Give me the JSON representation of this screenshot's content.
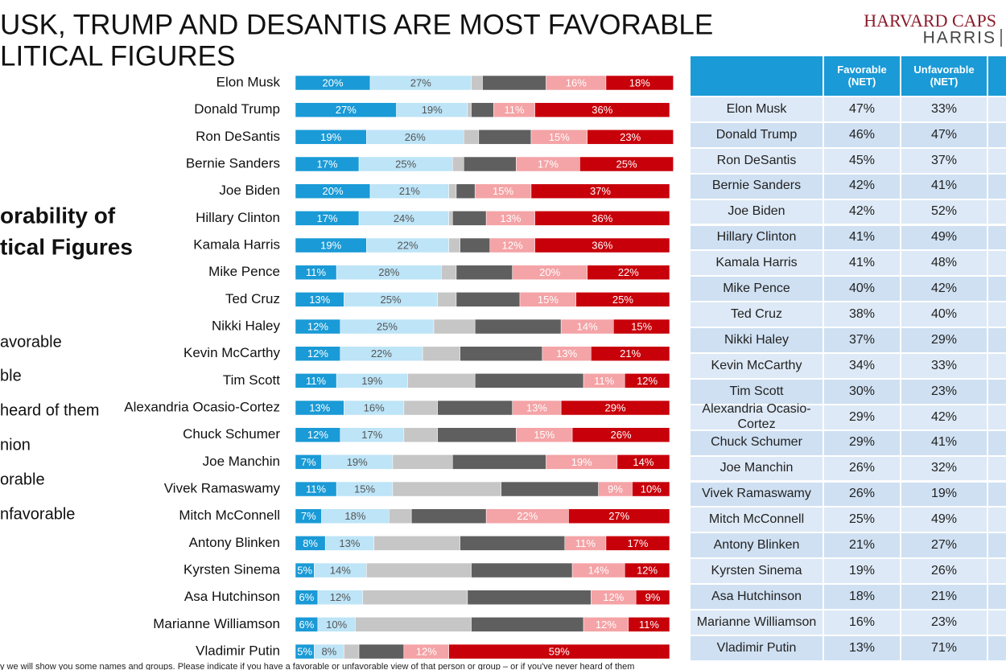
{
  "header": {
    "title": [
      "USK, TRUMP AND DESANTIS ARE MOST FAVORABLE",
      "LITICAL FIGURES"
    ],
    "subtitle": [
      "orability of",
      "tical Figures"
    ],
    "logo": [
      "HARVARD CAPS",
      "HARRIS"
    ],
    "footnote": "y we will show you some names and groups. Please indicate if you have a favorable or unfavorable view of that person or group – or if you've never heard of them"
  },
  "chart_data": {
    "type": "bar",
    "orientation": "horizontal",
    "stacked": true,
    "xlim": [
      0,
      100
    ],
    "categories": [
      "Elon Musk",
      "Donald Trump",
      "Ron DeSantis",
      "Bernie Sanders",
      "Joe Biden",
      "Hillary Clinton",
      "Kamala Harris",
      "Mike Pence",
      "Ted Cruz",
      "Nikki Haley",
      "Kevin McCarthy",
      "Tim Scott",
      "Alexandria Ocasio-Cortez",
      "Chuck Schumer",
      "Joe Manchin",
      "Vivek Ramaswamy",
      "Mitch McConnell",
      "Antony Blinken",
      "Kyrsten Sinema",
      "Asa Hutchinson",
      "Marianne Williamson",
      "Vladimir Putin"
    ],
    "series": [
      {
        "name": "avorable",
        "color": "#1a9ad6",
        "label_color": "#ffffff",
        "values": [
          20,
          27,
          19,
          17,
          20,
          17,
          19,
          11,
          13,
          12,
          12,
          11,
          13,
          12,
          7,
          11,
          7,
          8,
          5,
          6,
          6,
          5
        ],
        "value_labels": [
          "20%",
          "27%",
          "19%",
          "17%",
          "20%",
          "17%",
          "19%",
          "11%",
          "13%",
          "12%",
          "12%",
          "11%",
          "13%",
          "12%",
          "7%",
          "11%",
          "7%",
          "8%",
          "5%",
          "6%",
          "6%",
          "5%"
        ]
      },
      {
        "name": "ble",
        "color": "#bde4f7",
        "label_color": "#555555",
        "values": [
          27,
          19,
          26,
          25,
          21,
          24,
          22,
          28,
          25,
          25,
          22,
          19,
          16,
          17,
          19,
          15,
          18,
          13,
          14,
          12,
          10,
          8
        ],
        "value_labels": [
          "27%",
          "19%",
          "26%",
          "25%",
          "21%",
          "24%",
          "22%",
          "28%",
          "25%",
          "25%",
          "22%",
          "19%",
          "16%",
          "17%",
          "19%",
          "15%",
          "18%",
          "13%",
          "14%",
          "12%",
          "10%",
          "8%"
        ]
      },
      {
        "name": "heard of them",
        "color": "#c6c6c6",
        "values": [
          3,
          1,
          4,
          3,
          2,
          1,
          3,
          4,
          5,
          11,
          10,
          18,
          9,
          9,
          16,
          29,
          6,
          23,
          28,
          28,
          31,
          4
        ]
      },
      {
        "name": "nion",
        "color": "#5f5f5f",
        "values": [
          17,
          6,
          14,
          14,
          5,
          9,
          8,
          15,
          17,
          23,
          22,
          29,
          20,
          21,
          25,
          26,
          20,
          28,
          27,
          33,
          30,
          12
        ]
      },
      {
        "name": "orable",
        "color": "#f4a3a6",
        "label_color": "#ffffff",
        "values": [
          16,
          11,
          15,
          17,
          15,
          13,
          12,
          20,
          15,
          14,
          13,
          11,
          13,
          15,
          19,
          9,
          22,
          11,
          14,
          12,
          12,
          12
        ],
        "value_labels": [
          "16%",
          "11%",
          "15%",
          "17%",
          "15%",
          "13%",
          "12%",
          "20%",
          "15%",
          "14%",
          "13%",
          "11%",
          "13%",
          "15%",
          "19%",
          "9%",
          "22%",
          "11%",
          "14%",
          "12%",
          "12%",
          "12%"
        ]
      },
      {
        "name": "nfavorable",
        "color": "#c8000a",
        "label_color": "#ffffff",
        "values": [
          18,
          36,
          23,
          25,
          37,
          36,
          36,
          22,
          25,
          15,
          21,
          12,
          29,
          26,
          14,
          10,
          27,
          17,
          12,
          9,
          11,
          59
        ],
        "value_labels": [
          "18%",
          "36%",
          "23%",
          "25%",
          "37%",
          "36%",
          "36%",
          "22%",
          "25%",
          "15%",
          "21%",
          "12%",
          "29%",
          "26%",
          "14%",
          "10%",
          "27%",
          "17%",
          "12%",
          "9%",
          "11%",
          "59%"
        ]
      }
    ]
  },
  "table": {
    "columns": [
      "Favorable (NET)",
      "Unfavorable (NET)"
    ],
    "rows": [
      [
        "Elon Musk",
        "47%",
        "33%"
      ],
      [
        "Donald Trump",
        "46%",
        "47%"
      ],
      [
        "Ron DeSantis",
        "45%",
        "37%"
      ],
      [
        "Bernie Sanders",
        "42%",
        "41%"
      ],
      [
        "Joe Biden",
        "42%",
        "52%"
      ],
      [
        "Hillary Clinton",
        "41%",
        "49%"
      ],
      [
        "Kamala Harris",
        "41%",
        "48%"
      ],
      [
        "Mike Pence",
        "40%",
        "42%"
      ],
      [
        "Ted Cruz",
        "38%",
        "40%"
      ],
      [
        "Nikki Haley",
        "37%",
        "29%"
      ],
      [
        "Kevin McCarthy",
        "34%",
        "33%"
      ],
      [
        "Tim Scott",
        "30%",
        "23%"
      ],
      [
        "Alexandria Ocasio-Cortez",
        "29%",
        "42%"
      ],
      [
        "Chuck Schumer",
        "29%",
        "41%"
      ],
      [
        "Joe Manchin",
        "26%",
        "32%"
      ],
      [
        "Vivek Ramaswamy",
        "26%",
        "19%"
      ],
      [
        "Mitch McConnell",
        "25%",
        "49%"
      ],
      [
        "Antony Blinken",
        "21%",
        "27%"
      ],
      [
        "Kyrsten Sinema",
        "19%",
        "26%"
      ],
      [
        "Asa Hutchinson",
        "18%",
        "21%"
      ],
      [
        "Marianne Williamson",
        "16%",
        "23%"
      ],
      [
        "Vladimir Putin",
        "13%",
        "71%"
      ]
    ]
  }
}
